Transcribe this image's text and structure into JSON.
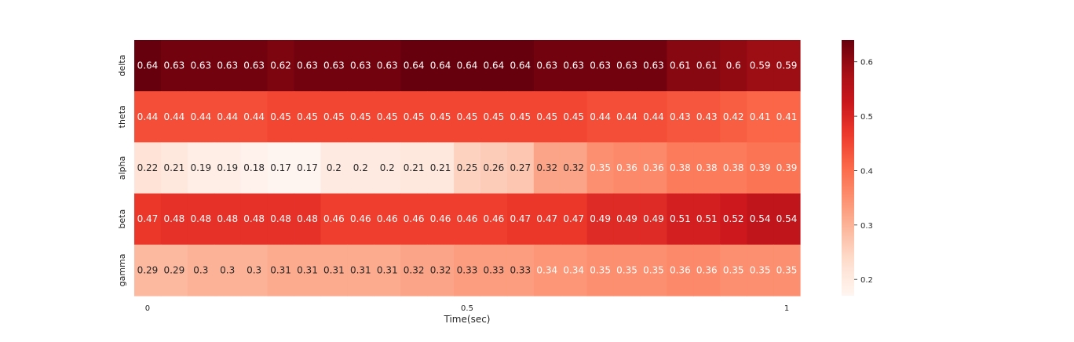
{
  "chart_data": {
    "type": "heatmap",
    "colormap": "Reds",
    "xlabel": "Time(sec)",
    "x_tick_labels": [
      "0",
      "0.5",
      "1"
    ],
    "rows": [
      "delta",
      "theta",
      "alpha",
      "beta",
      "gamma"
    ],
    "values": [
      [
        0.64,
        0.63,
        0.63,
        0.63,
        0.63,
        0.62,
        0.63,
        0.63,
        0.63,
        0.63,
        0.64,
        0.64,
        0.64,
        0.64,
        0.64,
        0.63,
        0.63,
        0.63,
        0.63,
        0.63,
        0.61,
        0.61,
        0.6,
        0.59,
        0.59
      ],
      [
        0.44,
        0.44,
        0.44,
        0.44,
        0.44,
        0.45,
        0.45,
        0.45,
        0.45,
        0.45,
        0.45,
        0.45,
        0.45,
        0.45,
        0.45,
        0.45,
        0.45,
        0.44,
        0.44,
        0.44,
        0.43,
        0.43,
        0.42,
        0.41,
        0.41
      ],
      [
        0.22,
        0.21,
        0.19,
        0.19,
        0.18,
        0.17,
        0.17,
        0.2,
        0.2,
        0.2,
        0.21,
        0.21,
        0.25,
        0.26,
        0.27,
        0.32,
        0.32,
        0.35,
        0.36,
        0.36,
        0.38,
        0.38,
        0.38,
        0.39,
        0.39
      ],
      [
        0.47,
        0.48,
        0.48,
        0.48,
        0.48,
        0.48,
        0.48,
        0.46,
        0.46,
        0.46,
        0.46,
        0.46,
        0.46,
        0.46,
        0.47,
        0.47,
        0.47,
        0.49,
        0.49,
        0.49,
        0.51,
        0.51,
        0.52,
        0.54,
        0.54
      ],
      [
        0.29,
        0.29,
        0.3,
        0.3,
        0.3,
        0.31,
        0.31,
        0.31,
        0.31,
        0.31,
        0.32,
        0.32,
        0.33,
        0.33,
        0.33,
        0.34,
        0.34,
        0.35,
        0.35,
        0.35,
        0.36,
        0.36,
        0.35,
        0.35,
        0.35
      ]
    ],
    "colorbar": {
      "vmin": 0.17,
      "vmax": 0.64,
      "ticks": [
        0.2,
        0.3,
        0.4,
        0.5,
        0.6
      ],
      "tick_labels": [
        "0.2",
        "0.3",
        "0.4",
        "0.5",
        "0.6"
      ]
    }
  }
}
